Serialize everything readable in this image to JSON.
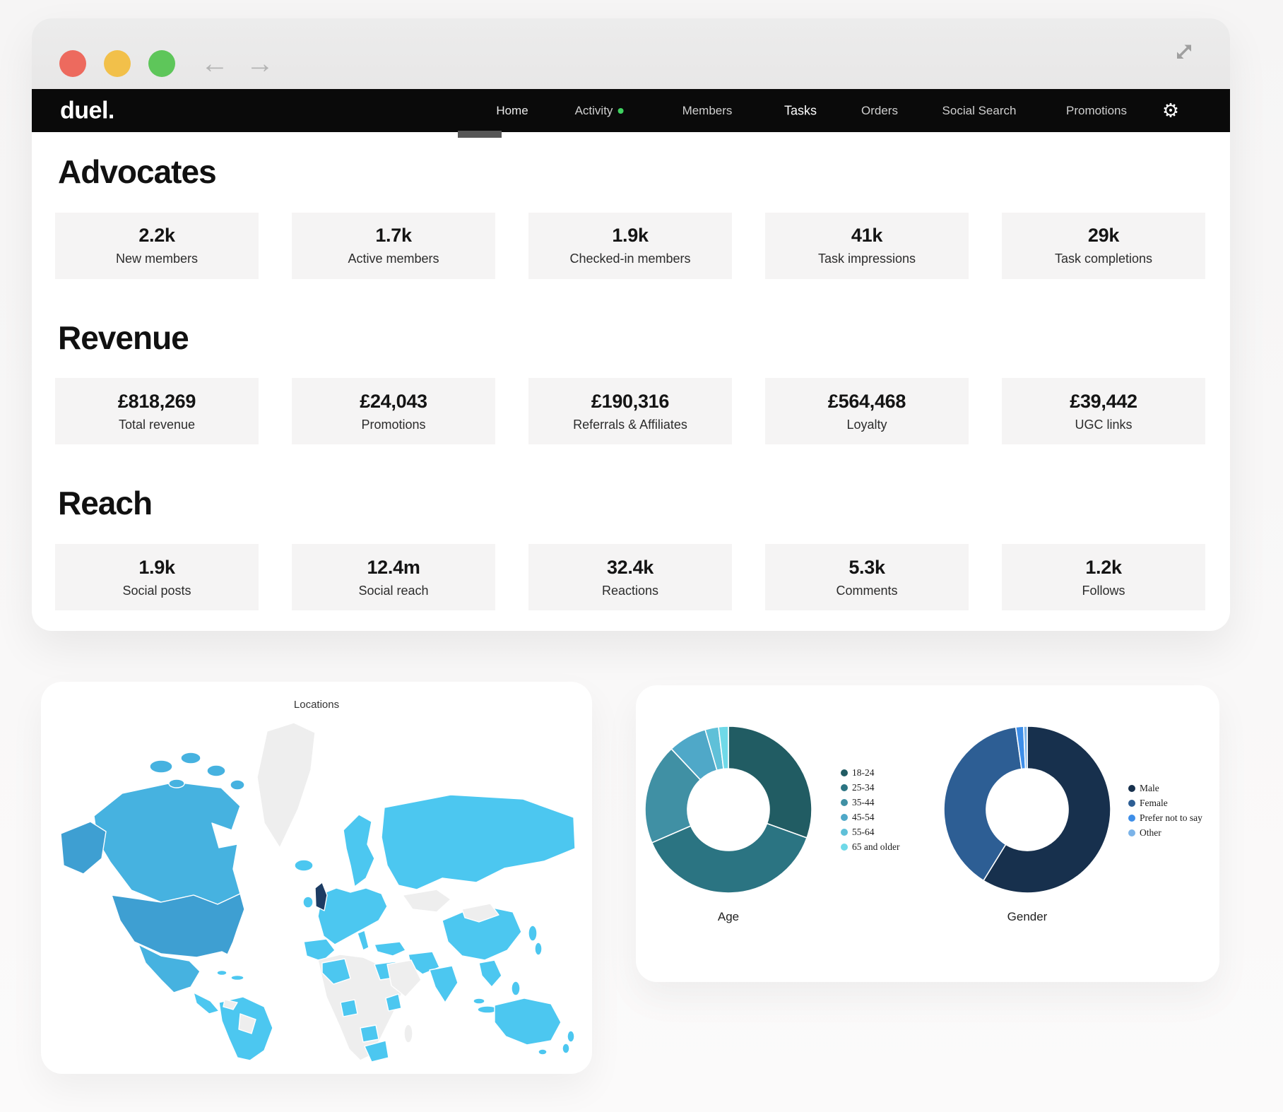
{
  "titlebar": {
    "icons": {
      "back": "←",
      "forward": "→",
      "gear": "⚙"
    }
  },
  "navbar": {
    "logo": "duel.",
    "items": [
      {
        "label": "Home",
        "active": true
      },
      {
        "label": "Activity",
        "has_dot": true
      },
      {
        "label": "Members"
      },
      {
        "label": "Tasks"
      },
      {
        "label": "Orders"
      },
      {
        "label": "Social Search"
      },
      {
        "label": "Promotions"
      }
    ]
  },
  "sections": [
    {
      "title": "Advocates",
      "cards": [
        {
          "value": "2.2k",
          "label": "New members"
        },
        {
          "value": "1.7k",
          "label": "Active members"
        },
        {
          "value": "1.9k",
          "label": "Checked-in members"
        },
        {
          "value": "41k",
          "label": "Task impressions"
        },
        {
          "value": "29k",
          "label": "Task completions"
        }
      ]
    },
    {
      "title": "Revenue",
      "cards": [
        {
          "value": "£818,269",
          "label": "Total revenue"
        },
        {
          "value": "£24,043",
          "label": "Promotions"
        },
        {
          "value": "£190,316",
          "label": "Referrals & Affiliates"
        },
        {
          "value": "£564,468",
          "label": "Loyalty"
        },
        {
          "value": "£39,442",
          "label": "UGC links"
        }
      ]
    },
    {
      "title": "Reach",
      "cards": [
        {
          "value": "1.9k",
          "label": "Social posts"
        },
        {
          "value": "12.4m",
          "label": "Social reach"
        },
        {
          "value": "32.4k",
          "label": "Reactions"
        },
        {
          "value": "5.3k",
          "label": "Comments"
        },
        {
          "value": "1.2k",
          "label": "Follows"
        }
      ]
    }
  ],
  "map_card": {
    "title": "Locations"
  },
  "chart_data": [
    {
      "type": "pie",
      "title": "Age",
      "donut": true,
      "legend_position": "right",
      "labels": [
        "18-24",
        "25-34",
        "35-44",
        "45-54",
        "55-64",
        "65 and older"
      ],
      "values": [
        30.5,
        38,
        19.5,
        7.5,
        2.6,
        1.9
      ],
      "colors": [
        "#215c63",
        "#2b7482",
        "#4090a4",
        "#4fa8c8",
        "#5fc0d8",
        "#6fd9e8"
      ]
    },
    {
      "type": "pie",
      "title": "Gender",
      "donut": true,
      "legend_position": "right",
      "labels": [
        "Male",
        "Female",
        "Prefer not to say",
        "Other"
      ],
      "values": [
        58.8,
        39,
        1.5,
        0.7
      ],
      "colors": [
        "#17304d",
        "#2d5e94",
        "#3e8ee8",
        "#7bb3e8"
      ]
    },
    {
      "type": "heatmap",
      "title": "Locations",
      "subtype": "world-choropleth",
      "tiers": [
        {
          "level": "highest",
          "color": "#1d3c63",
          "regions": [
            "United Kingdom"
          ]
        },
        {
          "level": "high",
          "color": "#3e9fd2",
          "regions": [
            "United States",
            "Alaska"
          ]
        },
        {
          "level": "medium",
          "color": "#46b2e0",
          "regions": [
            "Canada",
            "Mexico"
          ]
        },
        {
          "level": "base",
          "color": "#4cc7f0",
          "regions": [
            "most other countries"
          ]
        },
        {
          "level": "no-data",
          "color": "#eeeeee",
          "regions": [
            "Greenland",
            "Mongolia",
            "central Africa",
            "Arabian Peninsula",
            "Central Asia"
          ]
        }
      ]
    }
  ],
  "theme": {
    "page-bg": "#f6f5f5",
    "titlebar-bg": "#e8e7e7",
    "nav-bg": "#0a0a0a",
    "nav-text": "#cfcfcf",
    "green-dot": "#3fd160",
    "card-bg": "#f5f4f4",
    "tl-red": "#ed6a5e",
    "tl-yellow": "#f2c04a",
    "tl-green": "#5ec65a",
    "map-base": "#4cc7f0",
    "map-medium": "#46b2e0",
    "map-high": "#3e9fd2",
    "map-uk": "#1d3c63",
    "map-empty": "#eeeeee"
  }
}
